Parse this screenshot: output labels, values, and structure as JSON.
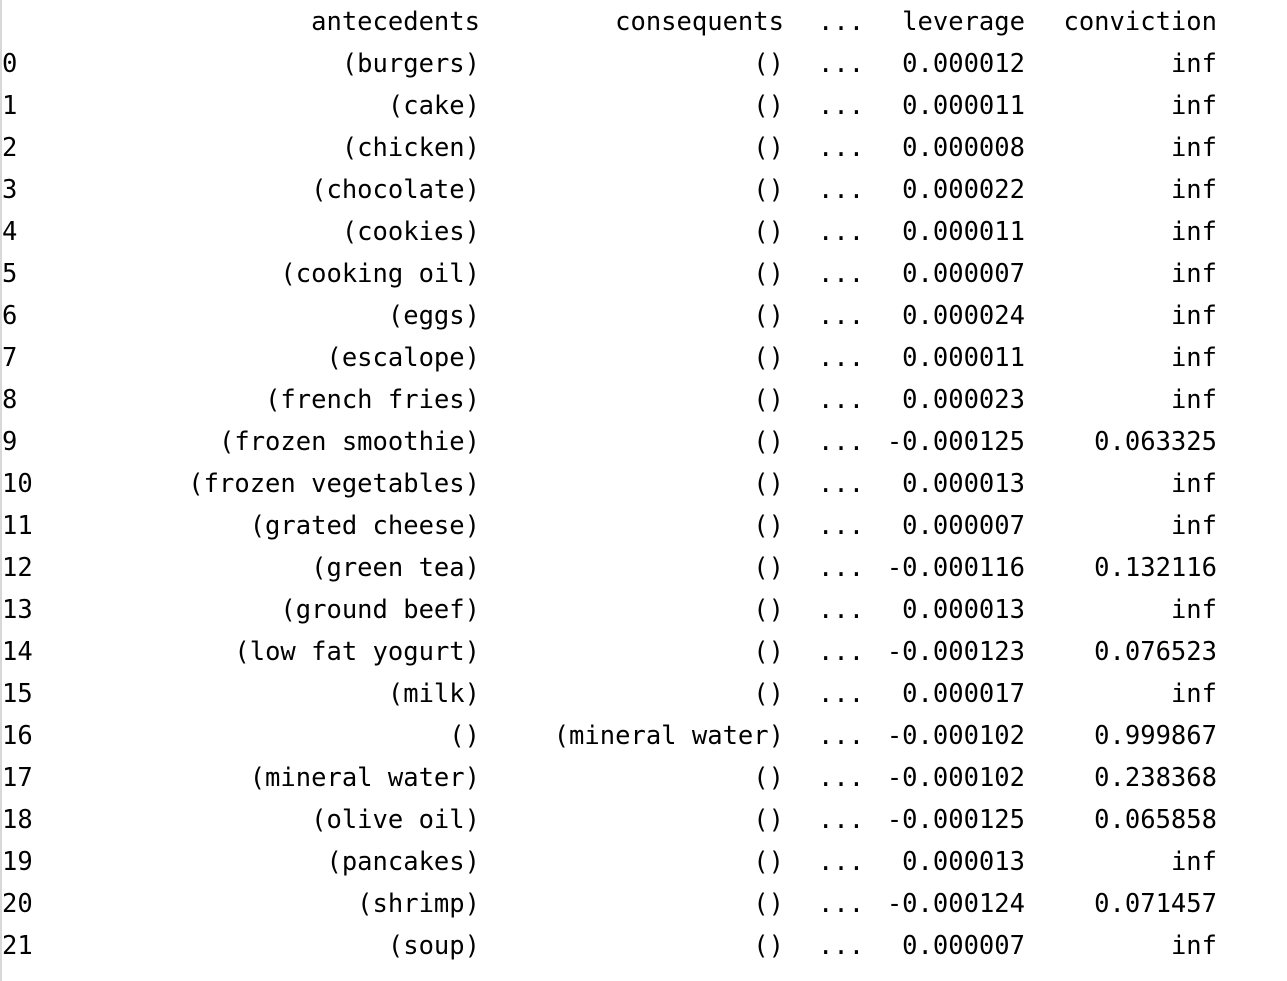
{
  "table": {
    "columns": {
      "antecedents": "antecedents",
      "consequents": "consequents",
      "ellipsis": "...",
      "leverage": "leverage",
      "conviction": "conviction"
    },
    "rows": [
      {
        "index": "0",
        "antecedents": "(burgers)",
        "consequents": "()",
        "ellipsis": "...",
        "leverage": "0.000012",
        "conviction": "inf"
      },
      {
        "index": "1",
        "antecedents": "(cake)",
        "consequents": "()",
        "ellipsis": "...",
        "leverage": "0.000011",
        "conviction": "inf"
      },
      {
        "index": "2",
        "antecedents": "(chicken)",
        "consequents": "()",
        "ellipsis": "...",
        "leverage": "0.000008",
        "conviction": "inf"
      },
      {
        "index": "3",
        "antecedents": "(chocolate)",
        "consequents": "()",
        "ellipsis": "...",
        "leverage": "0.000022",
        "conviction": "inf"
      },
      {
        "index": "4",
        "antecedents": "(cookies)",
        "consequents": "()",
        "ellipsis": "...",
        "leverage": "0.000011",
        "conviction": "inf"
      },
      {
        "index": "5",
        "antecedents": "(cooking oil)",
        "consequents": "()",
        "ellipsis": "...",
        "leverage": "0.000007",
        "conviction": "inf"
      },
      {
        "index": "6",
        "antecedents": "(eggs)",
        "consequents": "()",
        "ellipsis": "...",
        "leverage": "0.000024",
        "conviction": "inf"
      },
      {
        "index": "7",
        "antecedents": "(escalope)",
        "consequents": "()",
        "ellipsis": "...",
        "leverage": "0.000011",
        "conviction": "inf"
      },
      {
        "index": "8",
        "antecedents": "(french fries)",
        "consequents": "()",
        "ellipsis": "...",
        "leverage": "0.000023",
        "conviction": "inf"
      },
      {
        "index": "9",
        "antecedents": "(frozen smoothie)",
        "consequents": "()",
        "ellipsis": "...",
        "leverage": "-0.000125",
        "conviction": "0.063325"
      },
      {
        "index": "10",
        "antecedents": "(frozen vegetables)",
        "consequents": "()",
        "ellipsis": "...",
        "leverage": "0.000013",
        "conviction": "inf"
      },
      {
        "index": "11",
        "antecedents": "(grated cheese)",
        "consequents": "()",
        "ellipsis": "...",
        "leverage": "0.000007",
        "conviction": "inf"
      },
      {
        "index": "12",
        "antecedents": "(green tea)",
        "consequents": "()",
        "ellipsis": "...",
        "leverage": "-0.000116",
        "conviction": "0.132116"
      },
      {
        "index": "13",
        "antecedents": "(ground beef)",
        "consequents": "()",
        "ellipsis": "...",
        "leverage": "0.000013",
        "conviction": "inf"
      },
      {
        "index": "14",
        "antecedents": "(low fat yogurt)",
        "consequents": "()",
        "ellipsis": "...",
        "leverage": "-0.000123",
        "conviction": "0.076523"
      },
      {
        "index": "15",
        "antecedents": "(milk)",
        "consequents": "()",
        "ellipsis": "...",
        "leverage": "0.000017",
        "conviction": "inf"
      },
      {
        "index": "16",
        "antecedents": "()",
        "consequents": "(mineral water)",
        "ellipsis": "...",
        "leverage": "-0.000102",
        "conviction": "0.999867"
      },
      {
        "index": "17",
        "antecedents": "(mineral water)",
        "consequents": "()",
        "ellipsis": "...",
        "leverage": "-0.000102",
        "conviction": "0.238368"
      },
      {
        "index": "18",
        "antecedents": "(olive oil)",
        "consequents": "()",
        "ellipsis": "...",
        "leverage": "-0.000125",
        "conviction": "0.065858"
      },
      {
        "index": "19",
        "antecedents": "(pancakes)",
        "consequents": "()",
        "ellipsis": "...",
        "leverage": "0.000013",
        "conviction": "inf"
      },
      {
        "index": "20",
        "antecedents": "(shrimp)",
        "consequents": "()",
        "ellipsis": "...",
        "leverage": "-0.000124",
        "conviction": "0.071457"
      },
      {
        "index": "21",
        "antecedents": "(soup)",
        "consequents": "()",
        "ellipsis": "...",
        "leverage": "0.000007",
        "conviction": "inf"
      }
    ]
  }
}
